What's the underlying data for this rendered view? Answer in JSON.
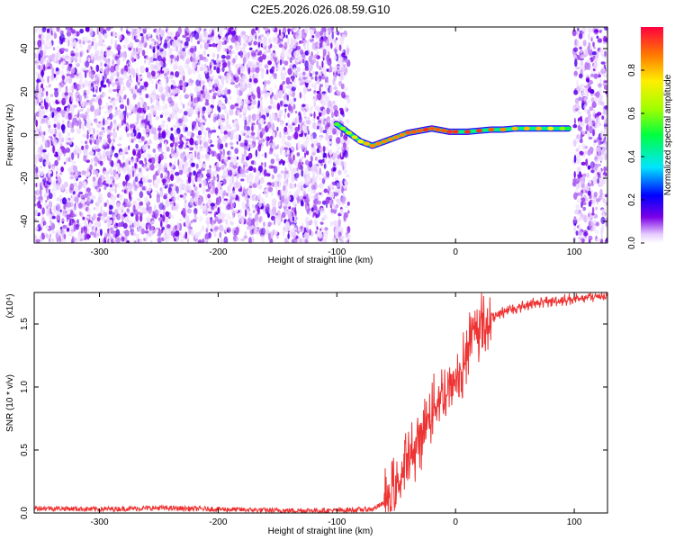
{
  "title": "C2E5.2026.026.08.59.G10",
  "chart_data": [
    {
      "type": "heatmap",
      "xlabel": "Height of straight line (km)",
      "ylabel": "Frequency (Hz)",
      "xlim": [
        -355,
        128
      ],
      "ylim": [
        -50,
        50
      ],
      "xticks": [
        -300,
        -200,
        -100,
        0,
        100
      ],
      "yticks": [
        -40,
        -20,
        0,
        20,
        40
      ],
      "colorbar": {
        "label": "Normalized spectral amplitude",
        "range": [
          0,
          1
        ],
        "ticks": [
          "0.0",
          "0.2",
          "0.4",
          "0.6",
          "0.8"
        ],
        "tick_values": [
          0,
          0.2,
          0.4,
          0.6,
          0.8
        ]
      },
      "noise_regions": [
        [
          -355,
          -90
        ],
        [
          100,
          128
        ]
      ],
      "signal_trace": {
        "x": [
          -100,
          -95,
          -90,
          -85,
          -80,
          -75,
          -70,
          -65,
          -60,
          -55,
          -50,
          -45,
          -40,
          -35,
          -30,
          -25,
          -20,
          -15,
          -10,
          -5,
          0,
          10,
          20,
          30,
          40,
          50,
          60,
          70,
          80,
          90,
          95
        ],
        "freq": [
          5,
          3,
          1,
          -1,
          -3,
          -4,
          -5,
          -4,
          -3,
          -2,
          -1,
          0,
          1,
          1.5,
          2,
          2.5,
          3,
          2.5,
          2,
          1.5,
          1.5,
          1.5,
          2,
          2.5,
          2.5,
          3,
          3,
          3,
          3,
          3,
          3
        ],
        "amplitude": [
          0.55,
          0.6,
          0.65,
          0.7,
          0.75,
          0.8,
          0.85,
          0.85,
          0.85,
          0.85,
          0.85,
          0.85,
          0.9,
          0.9,
          0.9,
          0.95,
          0.9,
          0.9,
          0.9,
          0.95,
          0.95,
          0.95,
          0.95,
          0.9,
          0.85,
          0.8,
          0.8,
          0.8,
          0.75,
          0.6,
          0.5
        ]
      }
    },
    {
      "type": "line",
      "xlabel": "Height of straight line (km)",
      "ylabel": "SNR (10 * v/v)",
      "multiplier": "(x10⁴)",
      "xlim": [
        -355,
        128
      ],
      "ylim": [
        0,
        1.75
      ],
      "xticks": [
        -300,
        -200,
        -100,
        0,
        100
      ],
      "yticks": [
        0.0,
        0.5,
        1.0,
        1.5
      ],
      "yticklabels": [
        "0.0",
        "0.5",
        "1.0",
        "1.5"
      ],
      "series": [
        {
          "color": "#ee3333",
          "x": [
            -355,
            -300,
            -250,
            -200,
            -150,
            -100,
            -70,
            -60,
            -50,
            -45,
            -40,
            -35,
            -30,
            -25,
            -20,
            -15,
            -10,
            -5,
            0,
            5,
            10,
            15,
            20,
            25,
            30,
            40,
            50,
            60,
            70,
            80,
            90,
            100,
            110,
            120,
            128
          ],
          "y": [
            0.04,
            0.03,
            0.04,
            0.03,
            0.02,
            0.02,
            0.03,
            0.08,
            0.2,
            0.3,
            0.42,
            0.5,
            0.6,
            0.68,
            0.8,
            0.9,
            0.95,
            1.0,
            1.05,
            1.12,
            1.3,
            1.4,
            1.48,
            1.5,
            1.55,
            1.6,
            1.62,
            1.65,
            1.67,
            1.68,
            1.69,
            1.7,
            1.71,
            1.72,
            1.72
          ]
        }
      ]
    }
  ]
}
